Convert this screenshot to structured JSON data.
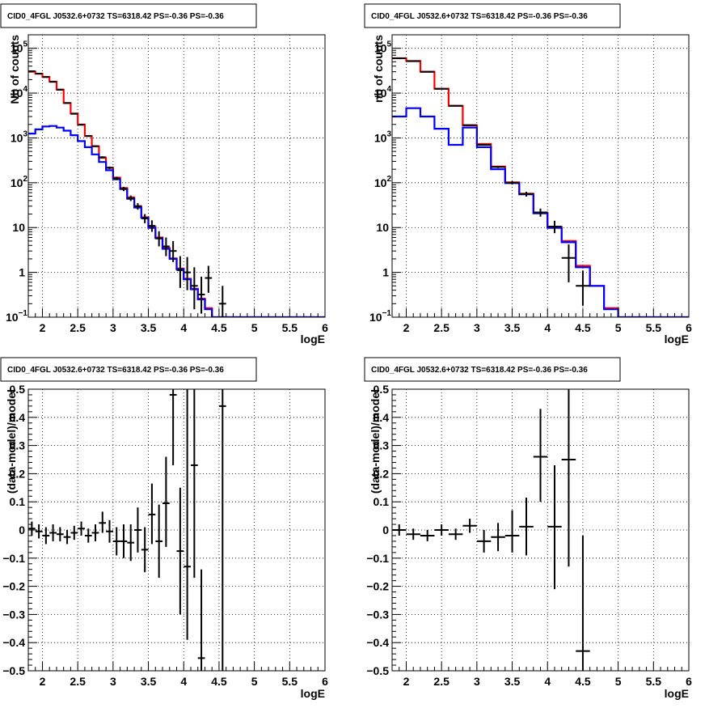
{
  "chart_data": [
    {
      "id": "p1",
      "type": "line",
      "title": "CID0_4FGL J0532.6+0732 TS=6318.42 PS=-0.36 PS=-0.36",
      "xlabel": "logE",
      "ylabel": "Nb of counts",
      "xlim": [
        1.8,
        6.0
      ],
      "ylim": [
        0.1,
        200000
      ],
      "yscale": "log",
      "grid": true,
      "xticks": [
        2,
        2.5,
        3,
        3.5,
        4,
        4.5,
        5,
        5.5,
        6
      ],
      "xtick_labels": [
        "2",
        "2.5",
        "3",
        "3.5",
        "4",
        "4.5",
        "5",
        "5.5",
        "6"
      ],
      "yticks": [
        0.1,
        1,
        10,
        100,
        1000,
        10000,
        100000
      ],
      "ytick_labels": [
        {
          "base": "10",
          "exp": "−1"
        },
        {
          "base": "1",
          "exp": ""
        },
        {
          "base": "10",
          "exp": ""
        },
        {
          "base": "10",
          "exp": "2"
        },
        {
          "base": "10",
          "exp": "3"
        },
        {
          "base": "10",
          "exp": "4"
        },
        {
          "base": "10",
          "exp": "5"
        }
      ],
      "bin_edges": [
        1.8,
        1.9,
        2.0,
        2.1,
        2.2,
        2.3,
        2.4,
        2.5,
        2.6,
        2.7,
        2.8,
        2.9,
        3.0,
        3.1,
        3.2,
        3.3,
        3.4,
        3.5,
        3.6,
        3.7,
        3.8,
        3.9,
        4.0,
        4.1,
        4.2,
        4.3,
        4.4,
        4.5,
        4.6,
        4.7,
        4.8,
        4.9,
        5.0,
        5.1,
        5.2,
        5.3,
        5.4,
        5.5,
        5.6,
        5.7,
        5.8,
        5.9,
        6.0
      ],
      "series": [
        {
          "color": "#ff0000",
          "values": [
            30000,
            27000,
            23000,
            18000,
            12000,
            6000,
            3500,
            2000,
            1100,
            650,
            360,
            215,
            130,
            76,
            47,
            30,
            17,
            10.3,
            6.0,
            3.5,
            2.05,
            1.22,
            0.72,
            0.43,
            0.26,
            0.16,
            0.1,
            0.1,
            0.1,
            0.1,
            0.1,
            0.1,
            0.1,
            0.1,
            0.1,
            0.1,
            0.1,
            0.1,
            0.1,
            0.1,
            0.1,
            0.1
          ]
        },
        {
          "color": "#0000ff",
          "values": [
            1250,
            1550,
            1800,
            1850,
            1700,
            1450,
            1150,
            850,
            620,
            430,
            290,
            190,
            120,
            72,
            44,
            28,
            16.5,
            9.8,
            5.8,
            3.35,
            2.0,
            1.18,
            0.7,
            0.42,
            0.25,
            0.15,
            0.1,
            0.1,
            0.1,
            0.1,
            0.1,
            0.1,
            0.1,
            0.1,
            0.1,
            0.1,
            0.1,
            0.1,
            0.1,
            0.1,
            0.1,
            0.1
          ]
        }
      ],
      "points": [
        {
          "x": 1.85,
          "y": 30800,
          "lo": 30600,
          "hi": 31000
        },
        {
          "x": 1.95,
          "y": 27200,
          "lo": 27000,
          "hi": 27400
        },
        {
          "x": 2.05,
          "y": 22800,
          "lo": 22600,
          "hi": 23000
        },
        {
          "x": 2.15,
          "y": 17800,
          "lo": 17600,
          "hi": 18000
        },
        {
          "x": 2.25,
          "y": 11900,
          "lo": 11700,
          "hi": 12100
        },
        {
          "x": 2.35,
          "y": 6000,
          "lo": 5900,
          "hi": 6100
        },
        {
          "x": 2.45,
          "y": 3450,
          "lo": 3400,
          "hi": 3500
        },
        {
          "x": 2.55,
          "y": 1960,
          "lo": 1920,
          "hi": 2000
        },
        {
          "x": 2.65,
          "y": 1110,
          "lo": 1080,
          "hi": 1140
        },
        {
          "x": 2.75,
          "y": 655,
          "lo": 630,
          "hi": 680
        },
        {
          "x": 2.85,
          "y": 370,
          "lo": 350,
          "hi": 390
        },
        {
          "x": 2.95,
          "y": 216,
          "lo": 202,
          "hi": 230
        },
        {
          "x": 3.05,
          "y": 125,
          "lo": 114,
          "hi": 136
        },
        {
          "x": 3.15,
          "y": 73,
          "lo": 65,
          "hi": 81
        },
        {
          "x": 3.25,
          "y": 45,
          "lo": 39,
          "hi": 52
        },
        {
          "x": 3.35,
          "y": 30,
          "lo": 25,
          "hi": 35
        },
        {
          "x": 3.45,
          "y": 16,
          "lo": 12.5,
          "hi": 20
        },
        {
          "x": 3.55,
          "y": 10.9,
          "lo": 8.0,
          "hi": 14.5
        },
        {
          "x": 3.65,
          "y": 5.7,
          "lo": 3.8,
          "hi": 8.3
        },
        {
          "x": 3.75,
          "y": 3.8,
          "lo": 2.3,
          "hi": 6.0
        },
        {
          "x": 3.85,
          "y": 3.0,
          "lo": 1.7,
          "hi": 5.0
        },
        {
          "x": 3.95,
          "y": 1.12,
          "lo": 0.45,
          "hi": 2.3
        },
        {
          "x": 4.05,
          "y": 1.0,
          "lo": 0.4,
          "hi": 2.2
        },
        {
          "x": 4.15,
          "y": 0.5,
          "lo": 0.15,
          "hi": 1.3
        },
        {
          "x": 4.25,
          "y": 0.32,
          "lo": 0.12,
          "hi": 0.8
        },
        {
          "x": 4.35,
          "y": 0.75,
          "lo": 0.35,
          "hi": 1.4
        },
        {
          "x": 4.55,
          "y": 0.2,
          "lo": 0.07,
          "hi": 0.5
        }
      ]
    },
    {
      "id": "p2",
      "type": "line",
      "title": "CID0_4FGL J0532.6+0732 TS=6318.42 PS=-0.36 PS=-0.36",
      "xlabel": "logE",
      "ylabel": "nb of counts",
      "xlim": [
        1.8,
        6.0
      ],
      "ylim": [
        0.1,
        200000
      ],
      "yscale": "log",
      "grid": true,
      "xticks": [
        2,
        2.5,
        3,
        3.5,
        4,
        4.5,
        5,
        5.5,
        6
      ],
      "xtick_labels": [
        "2",
        "2.5",
        "3",
        "3.5",
        "4",
        "4.5",
        "5",
        "5.5",
        "6"
      ],
      "yticks": [
        0.1,
        1,
        10,
        100,
        1000,
        10000,
        100000
      ],
      "ytick_labels": [
        {
          "base": "10",
          "exp": "−1"
        },
        {
          "base": "1",
          "exp": ""
        },
        {
          "base": "10",
          "exp": ""
        },
        {
          "base": "10",
          "exp": "2"
        },
        {
          "base": "10",
          "exp": "3"
        },
        {
          "base": "10",
          "exp": "4"
        },
        {
          "base": "10",
          "exp": "5"
        }
      ],
      "bin_edges": [
        1.8,
        2.0,
        2.2,
        2.4,
        2.6,
        2.8,
        3.0,
        3.2,
        3.4,
        3.6,
        3.8,
        4.0,
        4.2,
        4.4,
        4.6,
        4.8,
        5.0,
        5.2,
        5.4,
        5.6,
        5.8,
        6.0
      ],
      "series": [
        {
          "color": "#ff0000",
          "values": [
            60000,
            52000,
            30000,
            12500,
            5200,
            1900,
            730,
            230,
            102,
            57,
            21.5,
            10.3,
            5.0,
            1.4,
            0.5,
            0.16,
            0.1,
            0.1,
            0.1,
            0.1,
            0.1
          ]
        },
        {
          "color": "#0000ff",
          "values": [
            3000,
            4600,
            3000,
            1600,
            700,
            1700,
            620,
            200,
            98,
            55,
            20.7,
            9.8,
            4.7,
            1.3,
            0.5,
            0.15,
            0.1,
            0.1,
            0.1,
            0.1,
            0.1
          ]
        }
      ],
      "points": [
        {
          "x": 1.9,
          "y": 60000,
          "lo": 59800,
          "hi": 60200
        },
        {
          "x": 2.1,
          "y": 51500,
          "lo": 51300,
          "hi": 51700
        },
        {
          "x": 2.3,
          "y": 29800,
          "lo": 29600,
          "hi": 30000
        },
        {
          "x": 2.5,
          "y": 12500,
          "lo": 12400,
          "hi": 12600
        },
        {
          "x": 2.7,
          "y": 5200,
          "lo": 5100,
          "hi": 5300
        },
        {
          "x": 2.9,
          "y": 1930,
          "lo": 1890,
          "hi": 1970
        },
        {
          "x": 3.1,
          "y": 700,
          "lo": 680,
          "hi": 720
        },
        {
          "x": 3.3,
          "y": 225,
          "lo": 212,
          "hi": 238
        },
        {
          "x": 3.5,
          "y": 100,
          "lo": 91,
          "hi": 109
        },
        {
          "x": 3.7,
          "y": 56,
          "lo": 49,
          "hi": 63
        },
        {
          "x": 3.9,
          "y": 21.8,
          "lo": 17.5,
          "hi": 26.5
        },
        {
          "x": 4.1,
          "y": 10.5,
          "lo": 7.5,
          "hi": 14.2
        },
        {
          "x": 4.3,
          "y": 2.1,
          "lo": 0.6,
          "hi": 4.2
        },
        {
          "x": 4.5,
          "y": 0.5,
          "lo": 0.18,
          "hi": 1.1
        }
      ]
    },
    {
      "id": "p3",
      "type": "scatter",
      "title": "CID0_4FGL J0532.6+0732 TS=6318.42 PS=-0.36 PS=-0.36",
      "xlabel": "logE",
      "ylabel": "(data-model)/model",
      "xlim": [
        1.8,
        6.0
      ],
      "ylim": [
        -0.5,
        0.5
      ],
      "grid": true,
      "xticks": [
        2,
        2.5,
        3,
        3.5,
        4,
        4.5,
        5,
        5.5,
        6
      ],
      "xtick_labels": [
        "2",
        "2.5",
        "3",
        "3.5",
        "4",
        "4.5",
        "5",
        "5.5",
        "6"
      ],
      "yticks": [
        -0.5,
        -0.4,
        -0.3,
        -0.2,
        -0.1,
        0,
        0.1,
        0.2,
        0.3,
        0.4,
        0.5
      ],
      "ytick_labels": [
        "−0.5",
        "−0.4",
        "−0.3",
        "−0.2",
        "−0.1",
        "0",
        "0.1",
        "0.2",
        "0.3",
        "0.4",
        "0.5"
      ],
      "bin_width": 0.1,
      "points": [
        {
          "x": 1.85,
          "y": 0.005,
          "lo": -0.02,
          "hi": 0.03
        },
        {
          "x": 1.95,
          "y": -0.005,
          "lo": -0.03,
          "hi": 0.02
        },
        {
          "x": 2.05,
          "y": -0.02,
          "lo": -0.05,
          "hi": 0.01
        },
        {
          "x": 2.15,
          "y": -0.01,
          "lo": -0.04,
          "hi": 0.02
        },
        {
          "x": 2.25,
          "y": -0.015,
          "lo": -0.04,
          "hi": 0.01
        },
        {
          "x": 2.35,
          "y": -0.025,
          "lo": -0.05,
          "hi": 0.0
        },
        {
          "x": 2.45,
          "y": -0.01,
          "lo": -0.035,
          "hi": 0.015
        },
        {
          "x": 2.55,
          "y": 0.005,
          "lo": -0.02,
          "hi": 0.03
        },
        {
          "x": 2.65,
          "y": -0.02,
          "lo": -0.045,
          "hi": 0.005
        },
        {
          "x": 2.75,
          "y": -0.01,
          "lo": -0.04,
          "hi": 0.02
        },
        {
          "x": 2.85,
          "y": 0.025,
          "lo": -0.01,
          "hi": 0.065
        },
        {
          "x": 2.95,
          "y": -0.005,
          "lo": -0.045,
          "hi": 0.035
        },
        {
          "x": 3.05,
          "y": -0.04,
          "lo": -0.09,
          "hi": 0.01
        },
        {
          "x": 3.15,
          "y": -0.04,
          "lo": -0.1,
          "hi": 0.02
        },
        {
          "x": 3.25,
          "y": -0.045,
          "lo": -0.11,
          "hi": 0.02
        },
        {
          "x": 3.35,
          "y": -0.0,
          "lo": -0.08,
          "hi": 0.08
        },
        {
          "x": 3.45,
          "y": -0.07,
          "lo": -0.15,
          "hi": 0.01
        },
        {
          "x": 3.55,
          "y": 0.055,
          "lo": -0.05,
          "hi": 0.165
        },
        {
          "x": 3.65,
          "y": -0.04,
          "lo": -0.17,
          "hi": 0.09
        },
        {
          "x": 3.75,
          "y": 0.095,
          "lo": -0.06,
          "hi": 0.26
        },
        {
          "x": 3.85,
          "y": 0.48,
          "lo": 0.23,
          "hi": 0.5
        },
        {
          "x": 3.95,
          "y": -0.075,
          "lo": -0.3,
          "hi": 0.15
        },
        {
          "x": 4.05,
          "y": -0.13,
          "lo": -0.39,
          "hi": 0.5
        },
        {
          "x": 4.15,
          "y": 0.23,
          "lo": -0.17,
          "hi": 0.5
        },
        {
          "x": 4.25,
          "y": -0.455,
          "lo": -0.5,
          "hi": -0.14
        },
        {
          "x": 4.55,
          "y": 0.44,
          "lo": -0.5,
          "hi": 0.5
        }
      ]
    },
    {
      "id": "p4",
      "type": "scatter",
      "title": "CID0_4FGL J0532.6+0732 TS=6318.42 PS=-0.36 PS=-0.36",
      "xlabel": "logE",
      "ylabel": "(data-model)/model",
      "xlim": [
        1.8,
        6.0
      ],
      "ylim": [
        -0.5,
        0.5
      ],
      "grid": true,
      "xticks": [
        2,
        2.5,
        3,
        3.5,
        4,
        4.5,
        5,
        5.5,
        6
      ],
      "xtick_labels": [
        "2",
        "2.5",
        "3",
        "3.5",
        "4",
        "4.5",
        "5",
        "5.5",
        "6"
      ],
      "yticks": [
        -0.5,
        -0.4,
        -0.3,
        -0.2,
        -0.1,
        0,
        0.1,
        0.2,
        0.3,
        0.4,
        0.5
      ],
      "ytick_labels": [
        "−0.5",
        "−0.4",
        "−0.3",
        "−0.2",
        "−0.1",
        "0",
        "0.1",
        "0.2",
        "0.3",
        "0.4",
        "0.5"
      ],
      "bin_width": 0.2,
      "points": [
        {
          "x": 1.9,
          "y": 0.0,
          "lo": -0.02,
          "hi": 0.02
        },
        {
          "x": 2.1,
          "y": -0.015,
          "lo": -0.035,
          "hi": 0.005
        },
        {
          "x": 2.3,
          "y": -0.02,
          "lo": -0.04,
          "hi": 0.0
        },
        {
          "x": 2.5,
          "y": 0.0,
          "lo": -0.02,
          "hi": 0.02
        },
        {
          "x": 2.7,
          "y": -0.015,
          "lo": -0.035,
          "hi": 0.005
        },
        {
          "x": 2.9,
          "y": 0.015,
          "lo": -0.01,
          "hi": 0.04
        },
        {
          "x": 3.1,
          "y": -0.04,
          "lo": -0.08,
          "hi": 0.0
        },
        {
          "x": 3.3,
          "y": -0.025,
          "lo": -0.075,
          "hi": 0.025
        },
        {
          "x": 3.5,
          "y": -0.02,
          "lo": -0.08,
          "hi": 0.07
        },
        {
          "x": 3.7,
          "y": 0.012,
          "lo": -0.09,
          "hi": 0.115
        },
        {
          "x": 3.9,
          "y": 0.26,
          "lo": 0.1,
          "hi": 0.43
        },
        {
          "x": 4.1,
          "y": 0.012,
          "lo": -0.21,
          "hi": 0.23
        },
        {
          "x": 4.3,
          "y": 0.25,
          "lo": -0.13,
          "hi": 0.5
        },
        {
          "x": 4.5,
          "y": -0.43,
          "lo": -0.5,
          "hi": -0.02
        }
      ]
    }
  ]
}
